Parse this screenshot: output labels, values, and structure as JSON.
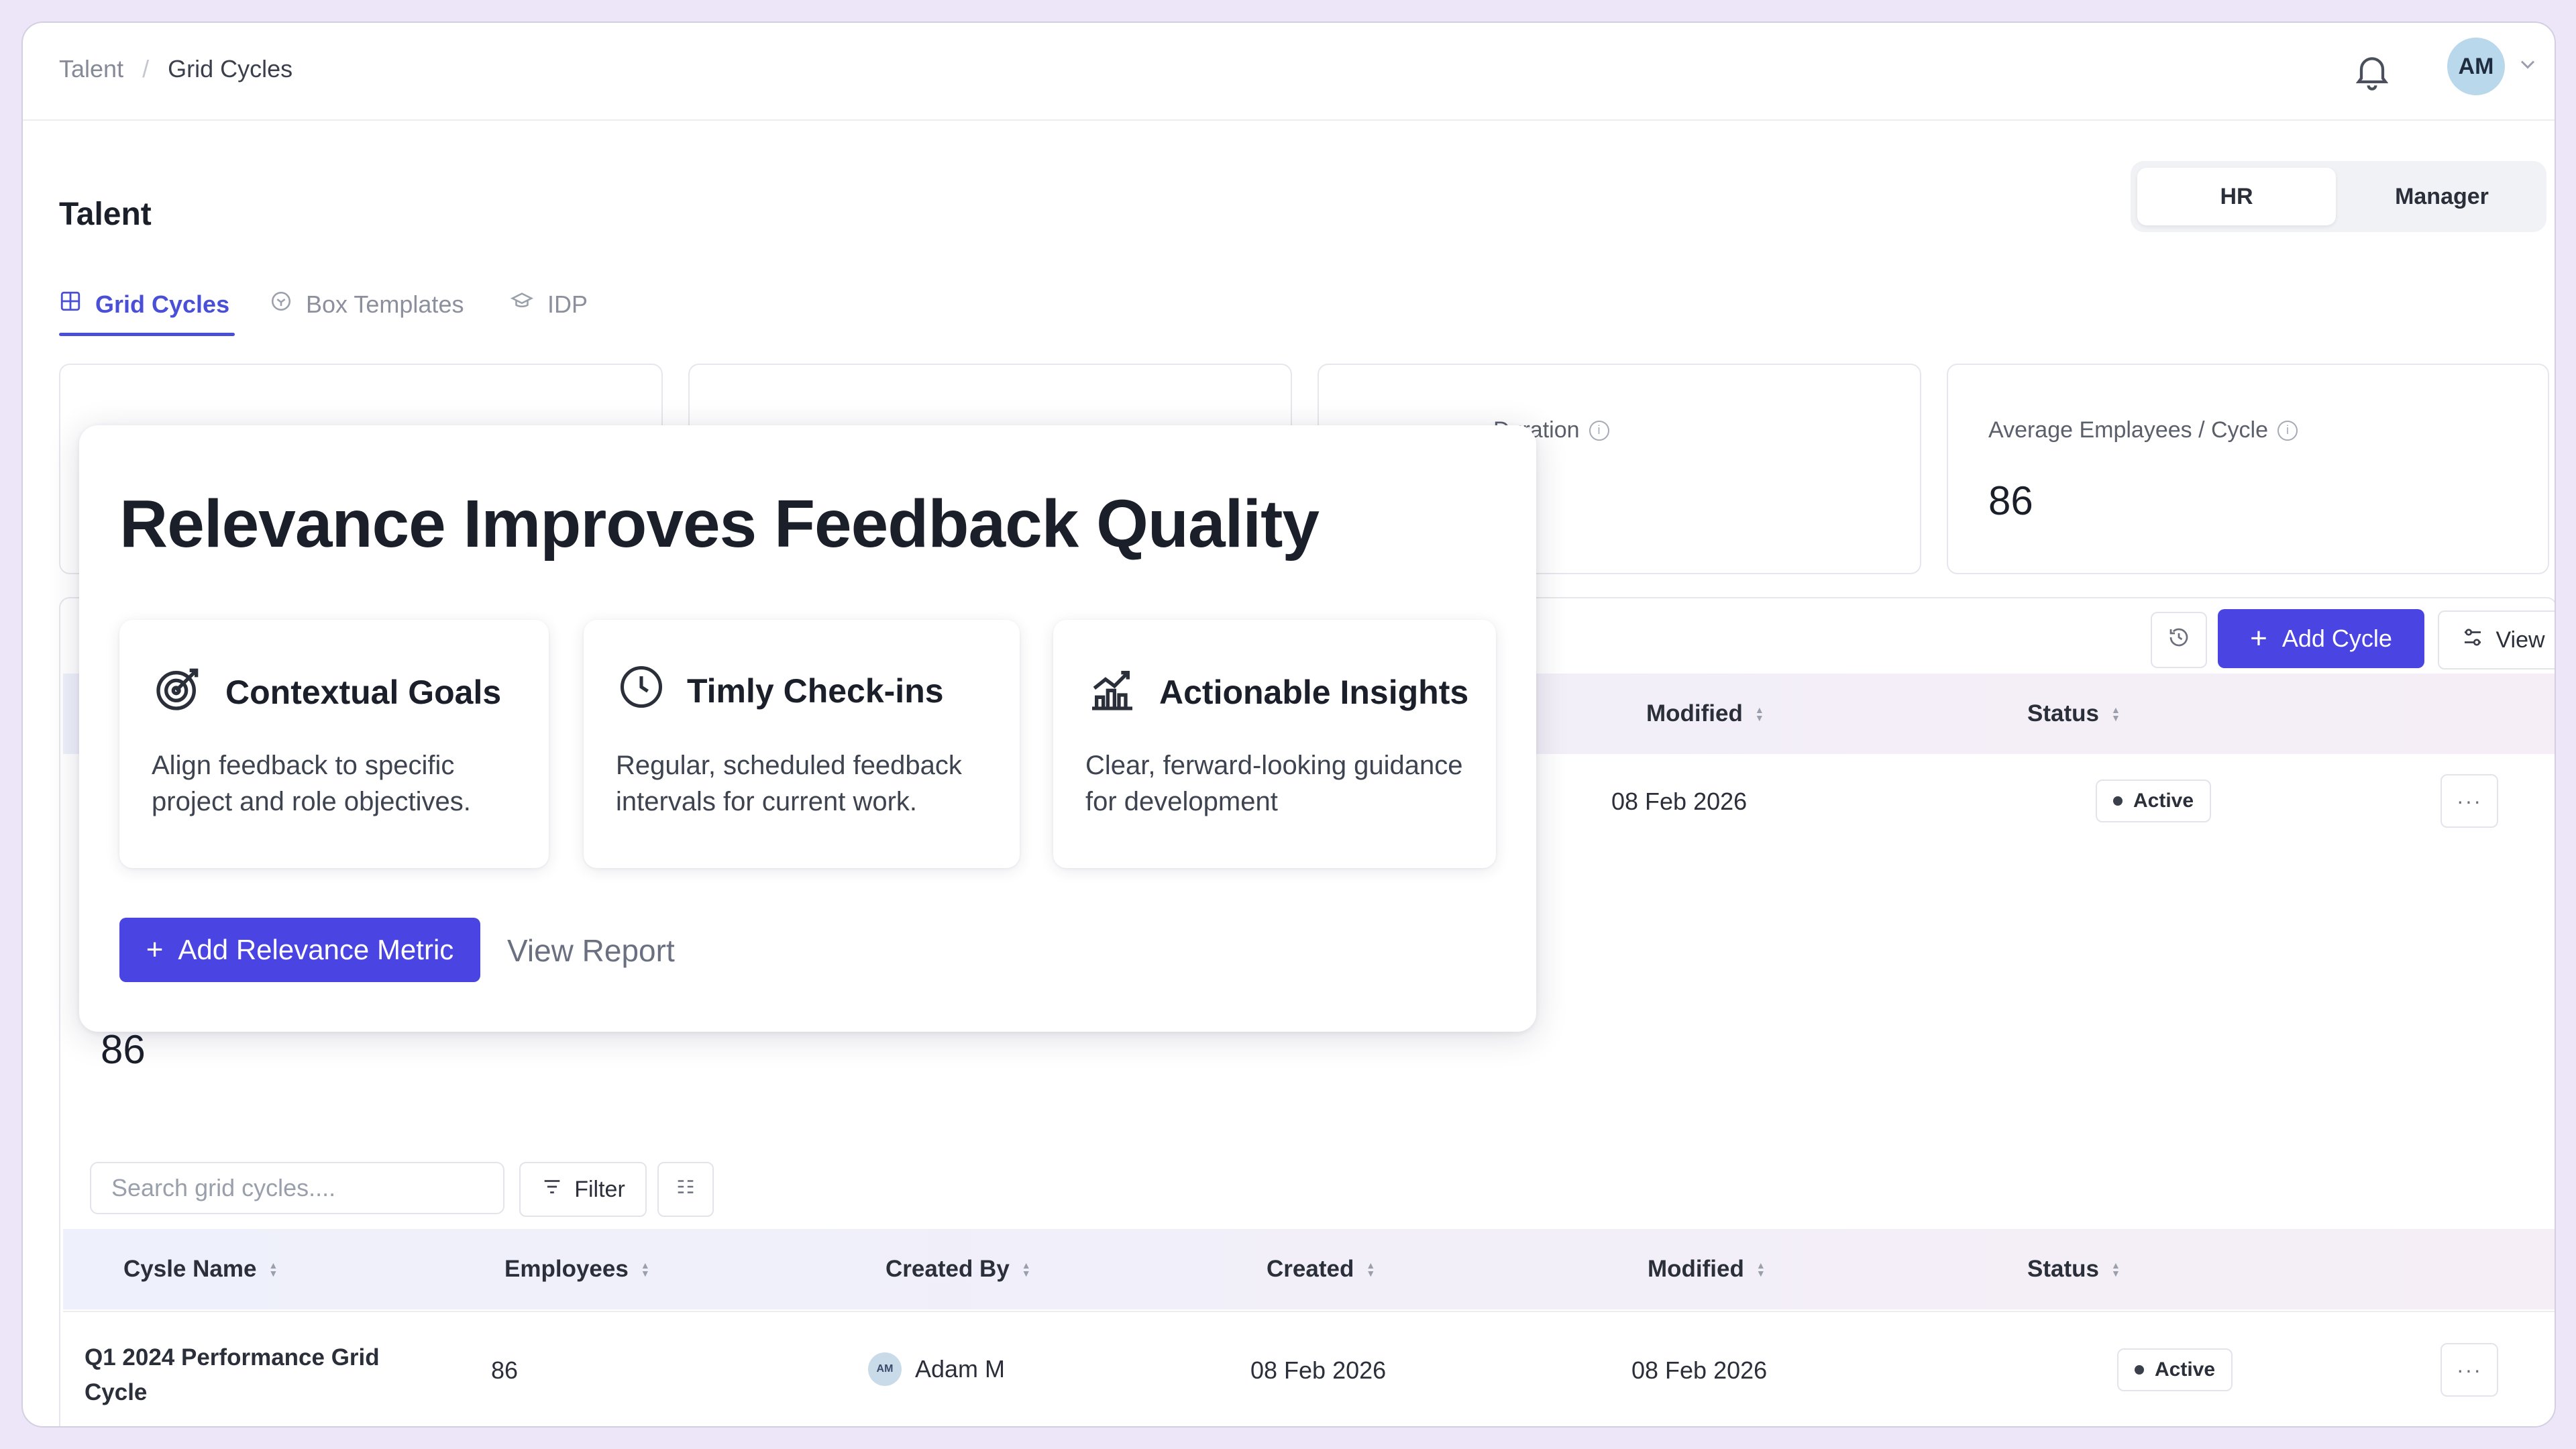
{
  "breadcrumb": {
    "root": "Talent",
    "separator": "/",
    "current": "Grid Cycles"
  },
  "user": {
    "initials": "AM"
  },
  "page": {
    "title": "Talent"
  },
  "role_toggle": {
    "hr": "HR",
    "manager": "Manager",
    "selected": "HR"
  },
  "tabs": [
    {
      "label": "Grid Cycles",
      "icon": "grid-icon",
      "active": true
    },
    {
      "label": "Box Templates",
      "icon": "cube-icon",
      "active": false
    },
    {
      "label": "IDP",
      "icon": "graduation-cap-icon",
      "active": false
    }
  ],
  "stats": [
    {
      "label": "Duration",
      "value": ""
    },
    {
      "label": "Average Emplayees / Cycle",
      "value": "86"
    }
  ],
  "hidden_stat_value": "86",
  "toolbar": {
    "add_cycle": "Add Cycle",
    "view": "View"
  },
  "popover": {
    "title": "Relevance Improves Feedback Quality",
    "features": [
      {
        "icon": "target-icon",
        "title": "Contextual Goals",
        "desc": "Align feedback to specific project and role objectives."
      },
      {
        "icon": "clock-icon",
        "title": "Timly Check-ins",
        "desc": "Regular, scheduled feedback intervals for current work."
      },
      {
        "icon": "growth-chart-icon",
        "title": "Actionable Insights",
        "desc": "Clear, ferward-looking guidance for development"
      }
    ],
    "primary_action": "Add Relevance Metric",
    "secondary_action": "View Report"
  },
  "table_top": {
    "headers": {
      "modified": "Modified",
      "status": "Status"
    },
    "row": {
      "modified": "08 Feb 2026",
      "status": "Active",
      "more": "···"
    }
  },
  "search": {
    "placeholder": "Search grid cycles...."
  },
  "filter": {
    "label": "Filter"
  },
  "table": {
    "headers": [
      "Cysle Name",
      "Employees",
      "Created By",
      "Created",
      "Modified",
      "Status"
    ],
    "rows": [
      {
        "name": "Q1 2024 Performance Grid Cycle",
        "employees": "86",
        "creator_initials": "AM",
        "created_by": "Adam M",
        "created": "08 Feb 2026",
        "modified": "08 Feb 2026",
        "status": "Active",
        "more": "···"
      }
    ]
  },
  "colors": {
    "accent": "#4a45e2",
    "background": "#ede6f8"
  }
}
